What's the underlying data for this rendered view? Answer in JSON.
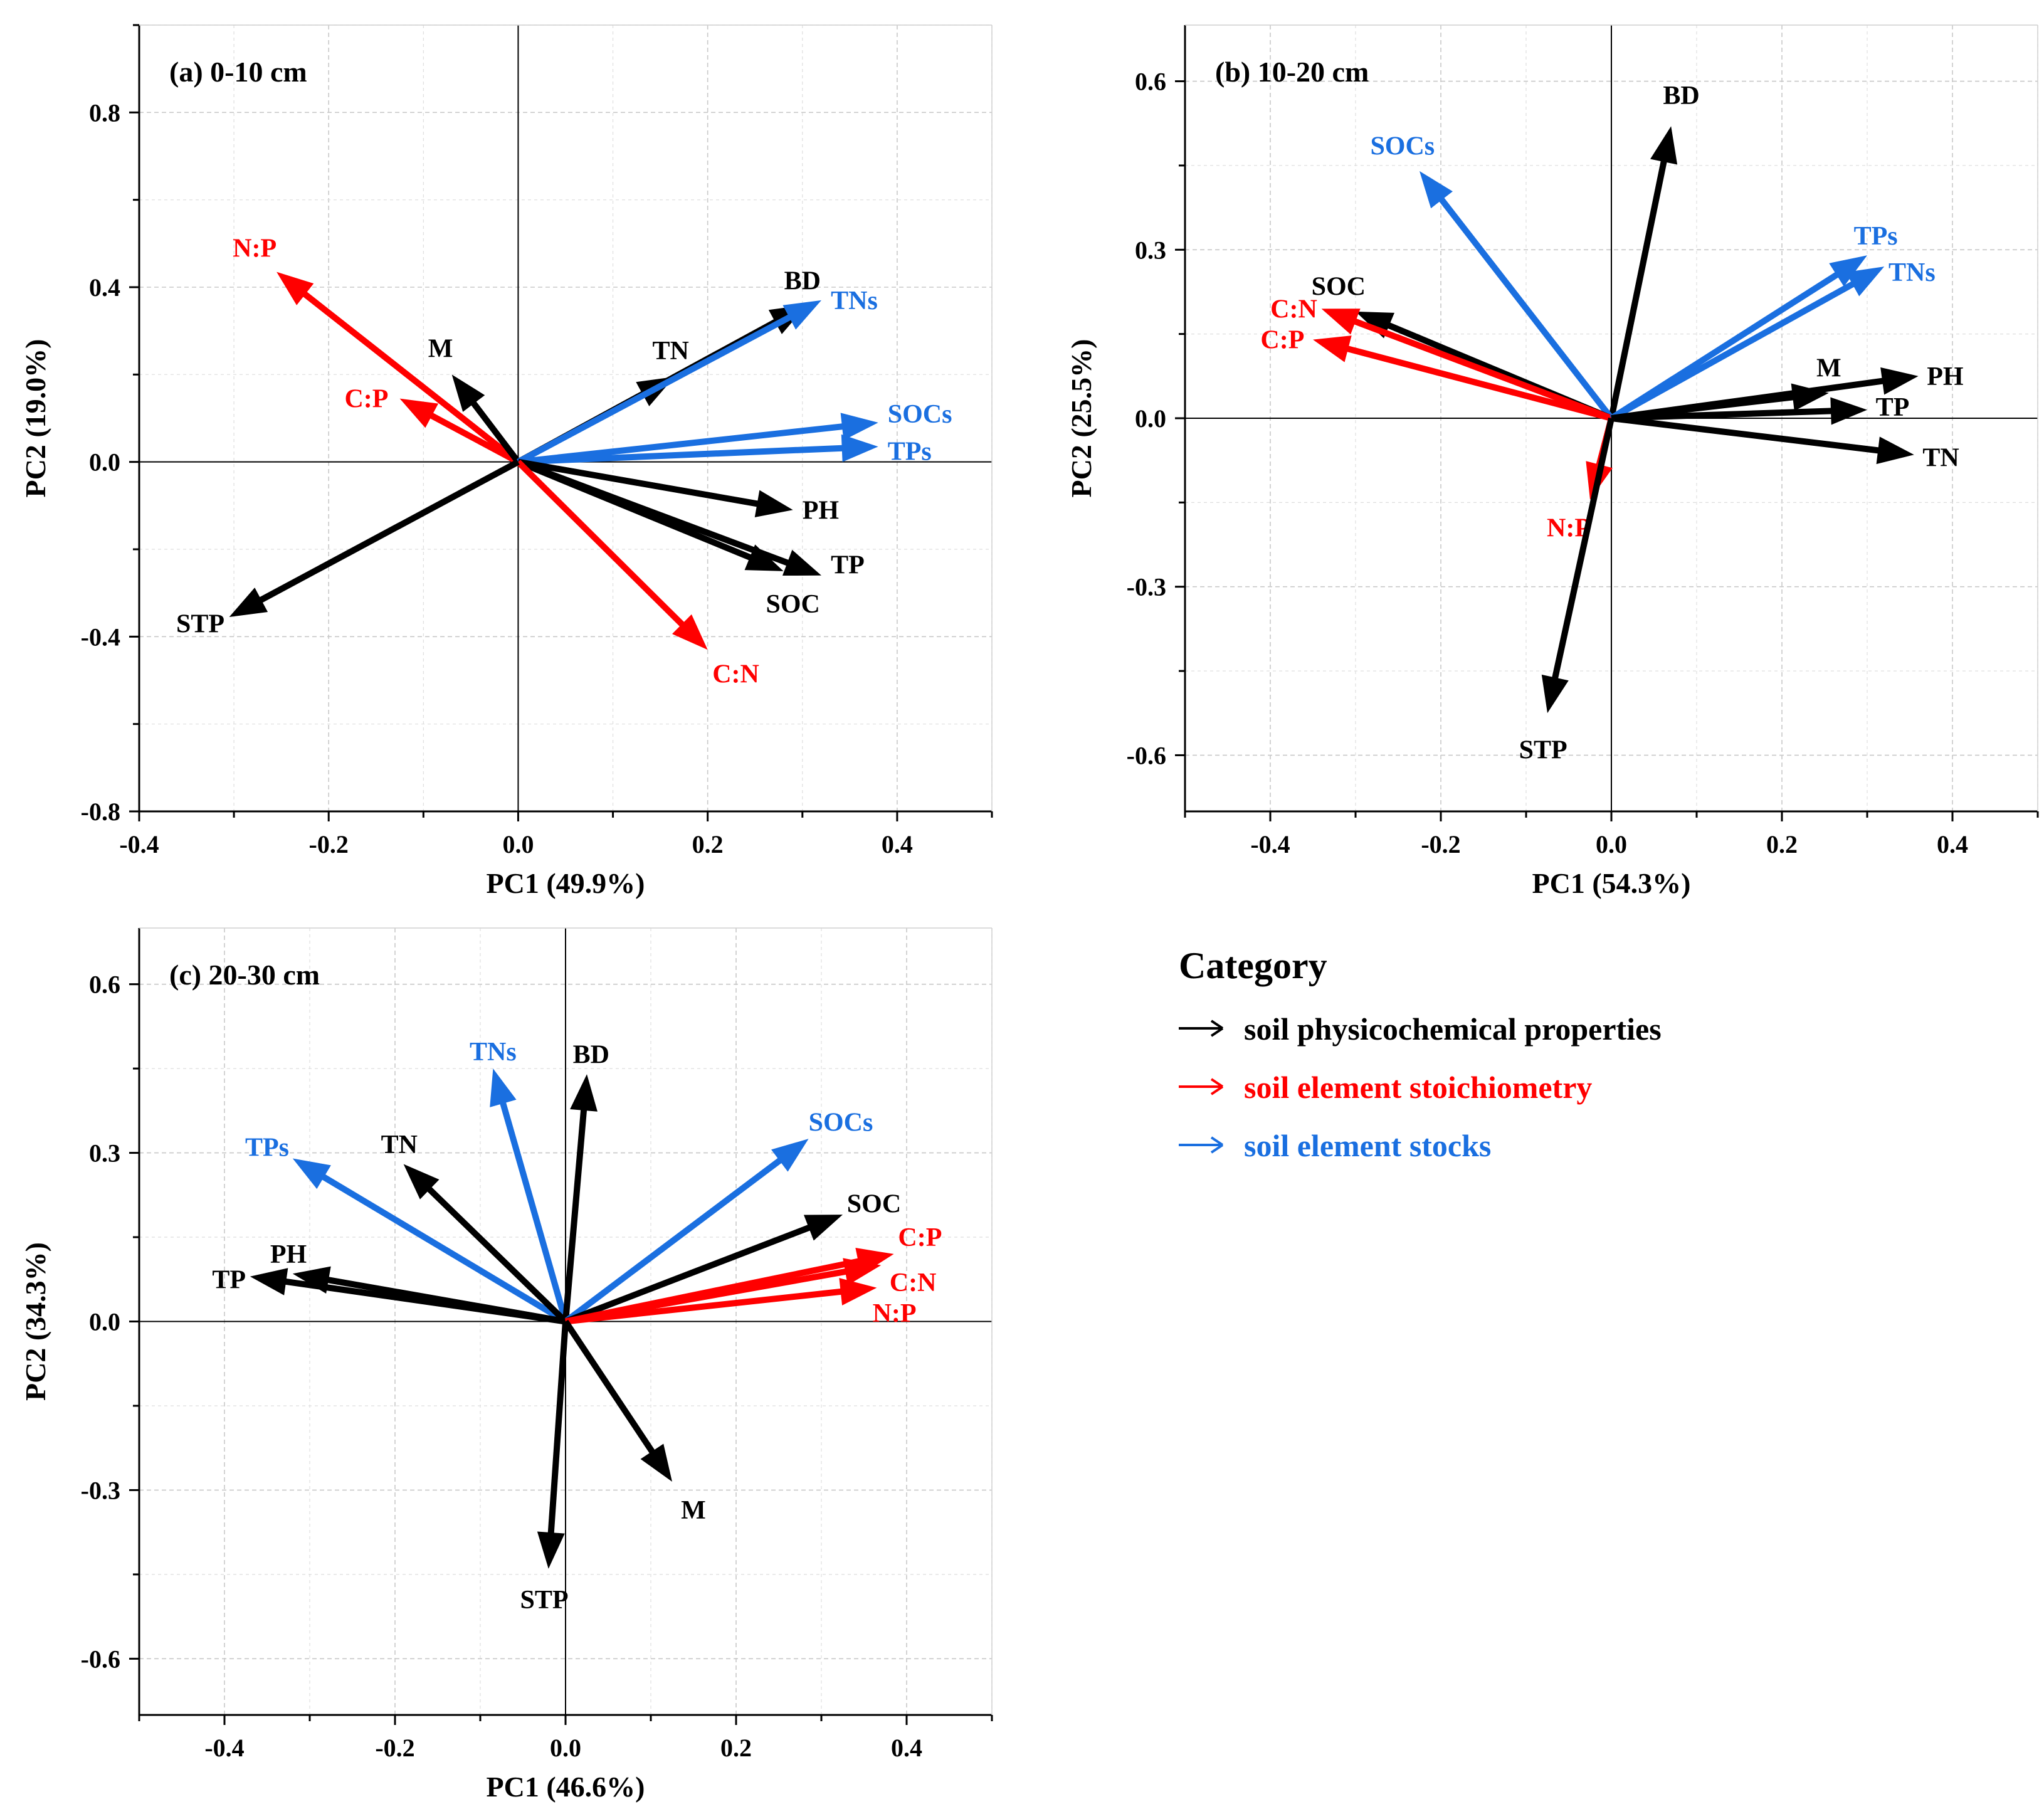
{
  "colors": {
    "physicochemical": "#000000",
    "stoichiometry": "#ff0000",
    "stocks": "#1a6fe0"
  },
  "legend": {
    "title": "Category",
    "items": [
      {
        "category": "physicochemical",
        "label": "soil physicochemical properties"
      },
      {
        "category": "stoichiometry",
        "label": "soil element stoichiometry"
      },
      {
        "category": "stocks",
        "label": "soil element stocks"
      }
    ]
  },
  "chart_data": [
    {
      "type": "biplot",
      "title": "(a) 0-10 cm",
      "xlabel": "PC1 (49.9%)",
      "ylabel": "PC2 (19.0%)",
      "xlim": [
        -0.4,
        0.5
      ],
      "ylim": [
        -0.8,
        1.0
      ],
      "xticks": [
        -0.4,
        -0.2,
        0.0,
        0.2,
        0.4
      ],
      "xtick_labels": [
        "-0.4",
        "-0.2",
        "0.0",
        "0.2",
        "0.4"
      ],
      "yticks": [
        -0.8,
        -0.4,
        0.0,
        0.4,
        0.8
      ],
      "ytick_labels": [
        "-0.8",
        "-0.4",
        "0.0",
        "0.4",
        "0.8"
      ],
      "vectors": [
        {
          "name": "N:P",
          "category": "stoichiometry",
          "x": -0.255,
          "y": 0.435,
          "label_anchor": "end",
          "label_dx": 0.0,
          "label_dy": 0.055
        },
        {
          "name": "C:P",
          "category": "stoichiometry",
          "x": -0.125,
          "y": 0.145,
          "label_anchor": "end",
          "label_dx": -0.012,
          "label_dy": 0.0
        },
        {
          "name": "M",
          "category": "physicochemical",
          "x": -0.07,
          "y": 0.2,
          "label_anchor": "middle",
          "label_dx": -0.012,
          "label_dy": 0.06
        },
        {
          "name": "BD",
          "category": "physicochemical",
          "x": 0.305,
          "y": 0.36,
          "label_anchor": "middle",
          "label_dx": -0.005,
          "label_dy": 0.055
        },
        {
          "name": "TN",
          "category": "physicochemical",
          "x": 0.165,
          "y": 0.195,
          "label_anchor": "middle",
          "label_dx": -0.004,
          "label_dy": 0.06
        },
        {
          "name": "TNs",
          "category": "stocks",
          "x": 0.32,
          "y": 0.37,
          "label_anchor": "start",
          "label_dx": 0.01,
          "label_dy": 0.0
        },
        {
          "name": "SOCs",
          "category": "stocks",
          "x": 0.38,
          "y": 0.09,
          "label_anchor": "start",
          "label_dx": 0.01,
          "label_dy": 0.02
        },
        {
          "name": "TPs",
          "category": "stocks",
          "x": 0.38,
          "y": 0.035,
          "label_anchor": "start",
          "label_dx": 0.01,
          "label_dy": -0.01
        },
        {
          "name": "PH",
          "category": "physicochemical",
          "x": 0.29,
          "y": -0.11,
          "label_anchor": "start",
          "label_dx": 0.01,
          "label_dy": 0.0
        },
        {
          "name": "TP",
          "category": "physicochemical",
          "x": 0.32,
          "y": -0.26,
          "label_anchor": "start",
          "label_dx": 0.01,
          "label_dy": 0.025
        },
        {
          "name": "SOC",
          "category": "physicochemical",
          "x": 0.28,
          "y": -0.25,
          "label_anchor": "middle",
          "label_dx": 0.01,
          "label_dy": -0.075
        },
        {
          "name": "C:N",
          "category": "stoichiometry",
          "x": 0.2,
          "y": -0.43,
          "label_anchor": "start",
          "label_dx": 0.005,
          "label_dy": -0.055
        },
        {
          "name": "STP",
          "category": "physicochemical",
          "x": -0.305,
          "y": -0.355,
          "label_anchor": "end",
          "label_dx": -0.005,
          "label_dy": -0.015
        }
      ]
    },
    {
      "type": "biplot",
      "title": "(b) 10-20 cm",
      "xlabel": "PC1 (54.3%)",
      "ylabel": "PC2 (25.5%)",
      "xlim": [
        -0.5,
        0.5
      ],
      "ylim": [
        -0.7,
        0.7
      ],
      "xticks": [
        -0.4,
        -0.2,
        0.0,
        0.2,
        0.4
      ],
      "xtick_labels": [
        "-0.4",
        "-0.2",
        "0.0",
        "0.2",
        "0.4"
      ],
      "yticks": [
        -0.6,
        -0.3,
        0.0,
        0.3,
        0.6
      ],
      "ytick_labels": [
        "-0.6",
        "-0.3",
        "0.0",
        "0.3",
        "0.6"
      ],
      "vectors": [
        {
          "name": "BD",
          "category": "physicochemical",
          "x": 0.07,
          "y": 0.52,
          "label_anchor": "middle",
          "label_dx": 0.012,
          "label_dy": 0.055
        },
        {
          "name": "SOCs",
          "category": "stocks",
          "x": -0.225,
          "y": 0.44,
          "label_anchor": "middle",
          "label_dx": -0.02,
          "label_dy": 0.045
        },
        {
          "name": "SOC",
          "category": "physicochemical",
          "x": -0.3,
          "y": 0.19,
          "label_anchor": "middle",
          "label_dx": -0.02,
          "label_dy": 0.045
        },
        {
          "name": "C:N",
          "category": "stoichiometry",
          "x": -0.34,
          "y": 0.195,
          "label_anchor": "end",
          "label_dx": -0.005,
          "label_dy": 0.0
        },
        {
          "name": "C:P",
          "category": "stoichiometry",
          "x": -0.35,
          "y": 0.14,
          "label_anchor": "end",
          "label_dx": -0.01,
          "label_dy": 0.0
        },
        {
          "name": "TPs",
          "category": "stocks",
          "x": 0.3,
          "y": 0.29,
          "label_anchor": "middle",
          "label_dx": 0.01,
          "label_dy": 0.035
        },
        {
          "name": "TNs",
          "category": "stocks",
          "x": 0.32,
          "y": 0.27,
          "label_anchor": "start",
          "label_dx": 0.005,
          "label_dy": -0.01
        },
        {
          "name": "M",
          "category": "physicochemical",
          "x": 0.255,
          "y": 0.045,
          "label_anchor": "middle",
          "label_dx": 0.0,
          "label_dy": 0.045
        },
        {
          "name": "PH",
          "category": "physicochemical",
          "x": 0.36,
          "y": 0.075,
          "label_anchor": "start",
          "label_dx": 0.01,
          "label_dy": 0.0
        },
        {
          "name": "TP",
          "category": "physicochemical",
          "x": 0.3,
          "y": 0.015,
          "label_anchor": "start",
          "label_dx": 0.01,
          "label_dy": 0.005
        },
        {
          "name": "TN",
          "category": "physicochemical",
          "x": 0.355,
          "y": -0.065,
          "label_anchor": "start",
          "label_dx": 0.01,
          "label_dy": -0.005
        },
        {
          "name": "N:P",
          "category": "stoichiometry",
          "x": -0.025,
          "y": -0.145,
          "label_anchor": "middle",
          "label_dx": -0.025,
          "label_dy": -0.05
        },
        {
          "name": "STP",
          "category": "physicochemical",
          "x": -0.075,
          "y": -0.525,
          "label_anchor": "middle",
          "label_dx": -0.005,
          "label_dy": -0.065
        }
      ]
    },
    {
      "type": "biplot",
      "title": "(c) 20-30 cm",
      "xlabel": "PC1 (46.6%)",
      "ylabel": "PC2 (34.3%)",
      "xlim": [
        -0.5,
        0.5
      ],
      "ylim": [
        -0.7,
        0.7
      ],
      "xticks": [
        -0.4,
        -0.2,
        0.0,
        0.2,
        0.4
      ],
      "xtick_labels": [
        "-0.4",
        "-0.2",
        "0.0",
        "0.2",
        "0.4"
      ],
      "yticks": [
        -0.6,
        -0.3,
        0.0,
        0.3,
        0.6
      ],
      "ytick_labels": [
        "-0.6",
        "-0.3",
        "0.0",
        "0.3",
        "0.6"
      ],
      "vectors": [
        {
          "name": "TNs",
          "category": "stocks",
          "x": -0.085,
          "y": 0.45,
          "label_anchor": "middle",
          "label_dx": 0.0,
          "label_dy": 0.03
        },
        {
          "name": "BD",
          "category": "physicochemical",
          "x": 0.025,
          "y": 0.44,
          "label_anchor": "middle",
          "label_dx": 0.005,
          "label_dy": 0.035
        },
        {
          "name": "TPs",
          "category": "stocks",
          "x": -0.32,
          "y": 0.29,
          "label_anchor": "middle",
          "label_dx": -0.03,
          "label_dy": 0.02
        },
        {
          "name": "TN",
          "category": "physicochemical",
          "x": -0.19,
          "y": 0.28,
          "label_anchor": "middle",
          "label_dx": -0.005,
          "label_dy": 0.035
        },
        {
          "name": "SOCs",
          "category": "stocks",
          "x": 0.285,
          "y": 0.325,
          "label_anchor": "start",
          "label_dx": 0.0,
          "label_dy": 0.03
        },
        {
          "name": "SOC",
          "category": "physicochemical",
          "x": 0.325,
          "y": 0.19,
          "label_anchor": "start",
          "label_dx": 0.005,
          "label_dy": 0.02
        },
        {
          "name": "PH",
          "category": "physicochemical",
          "x": -0.32,
          "y": 0.085,
          "label_anchor": "middle",
          "label_dx": -0.005,
          "label_dy": 0.035
        },
        {
          "name": "TP",
          "category": "physicochemical",
          "x": -0.37,
          "y": 0.08,
          "label_anchor": "end",
          "label_dx": -0.005,
          "label_dy": -0.005
        },
        {
          "name": "C:P",
          "category": "stoichiometry",
          "x": 0.385,
          "y": 0.12,
          "label_anchor": "start",
          "label_dx": 0.005,
          "label_dy": 0.03
        },
        {
          "name": "C:N",
          "category": "stoichiometry",
          "x": 0.37,
          "y": 0.1,
          "label_anchor": "start",
          "label_dx": 0.01,
          "label_dy": -0.03
        },
        {
          "name": "N:P",
          "category": "stoichiometry",
          "x": 0.365,
          "y": 0.06,
          "label_anchor": "start",
          "label_dx": -0.005,
          "label_dy": -0.045
        },
        {
          "name": "M",
          "category": "physicochemical",
          "x": 0.125,
          "y": -0.285,
          "label_anchor": "middle",
          "label_dx": 0.025,
          "label_dy": -0.05
        },
        {
          "name": "STP",
          "category": "physicochemical",
          "x": -0.02,
          "y": -0.44,
          "label_anchor": "middle",
          "label_dx": -0.005,
          "label_dy": -0.055
        }
      ]
    }
  ]
}
